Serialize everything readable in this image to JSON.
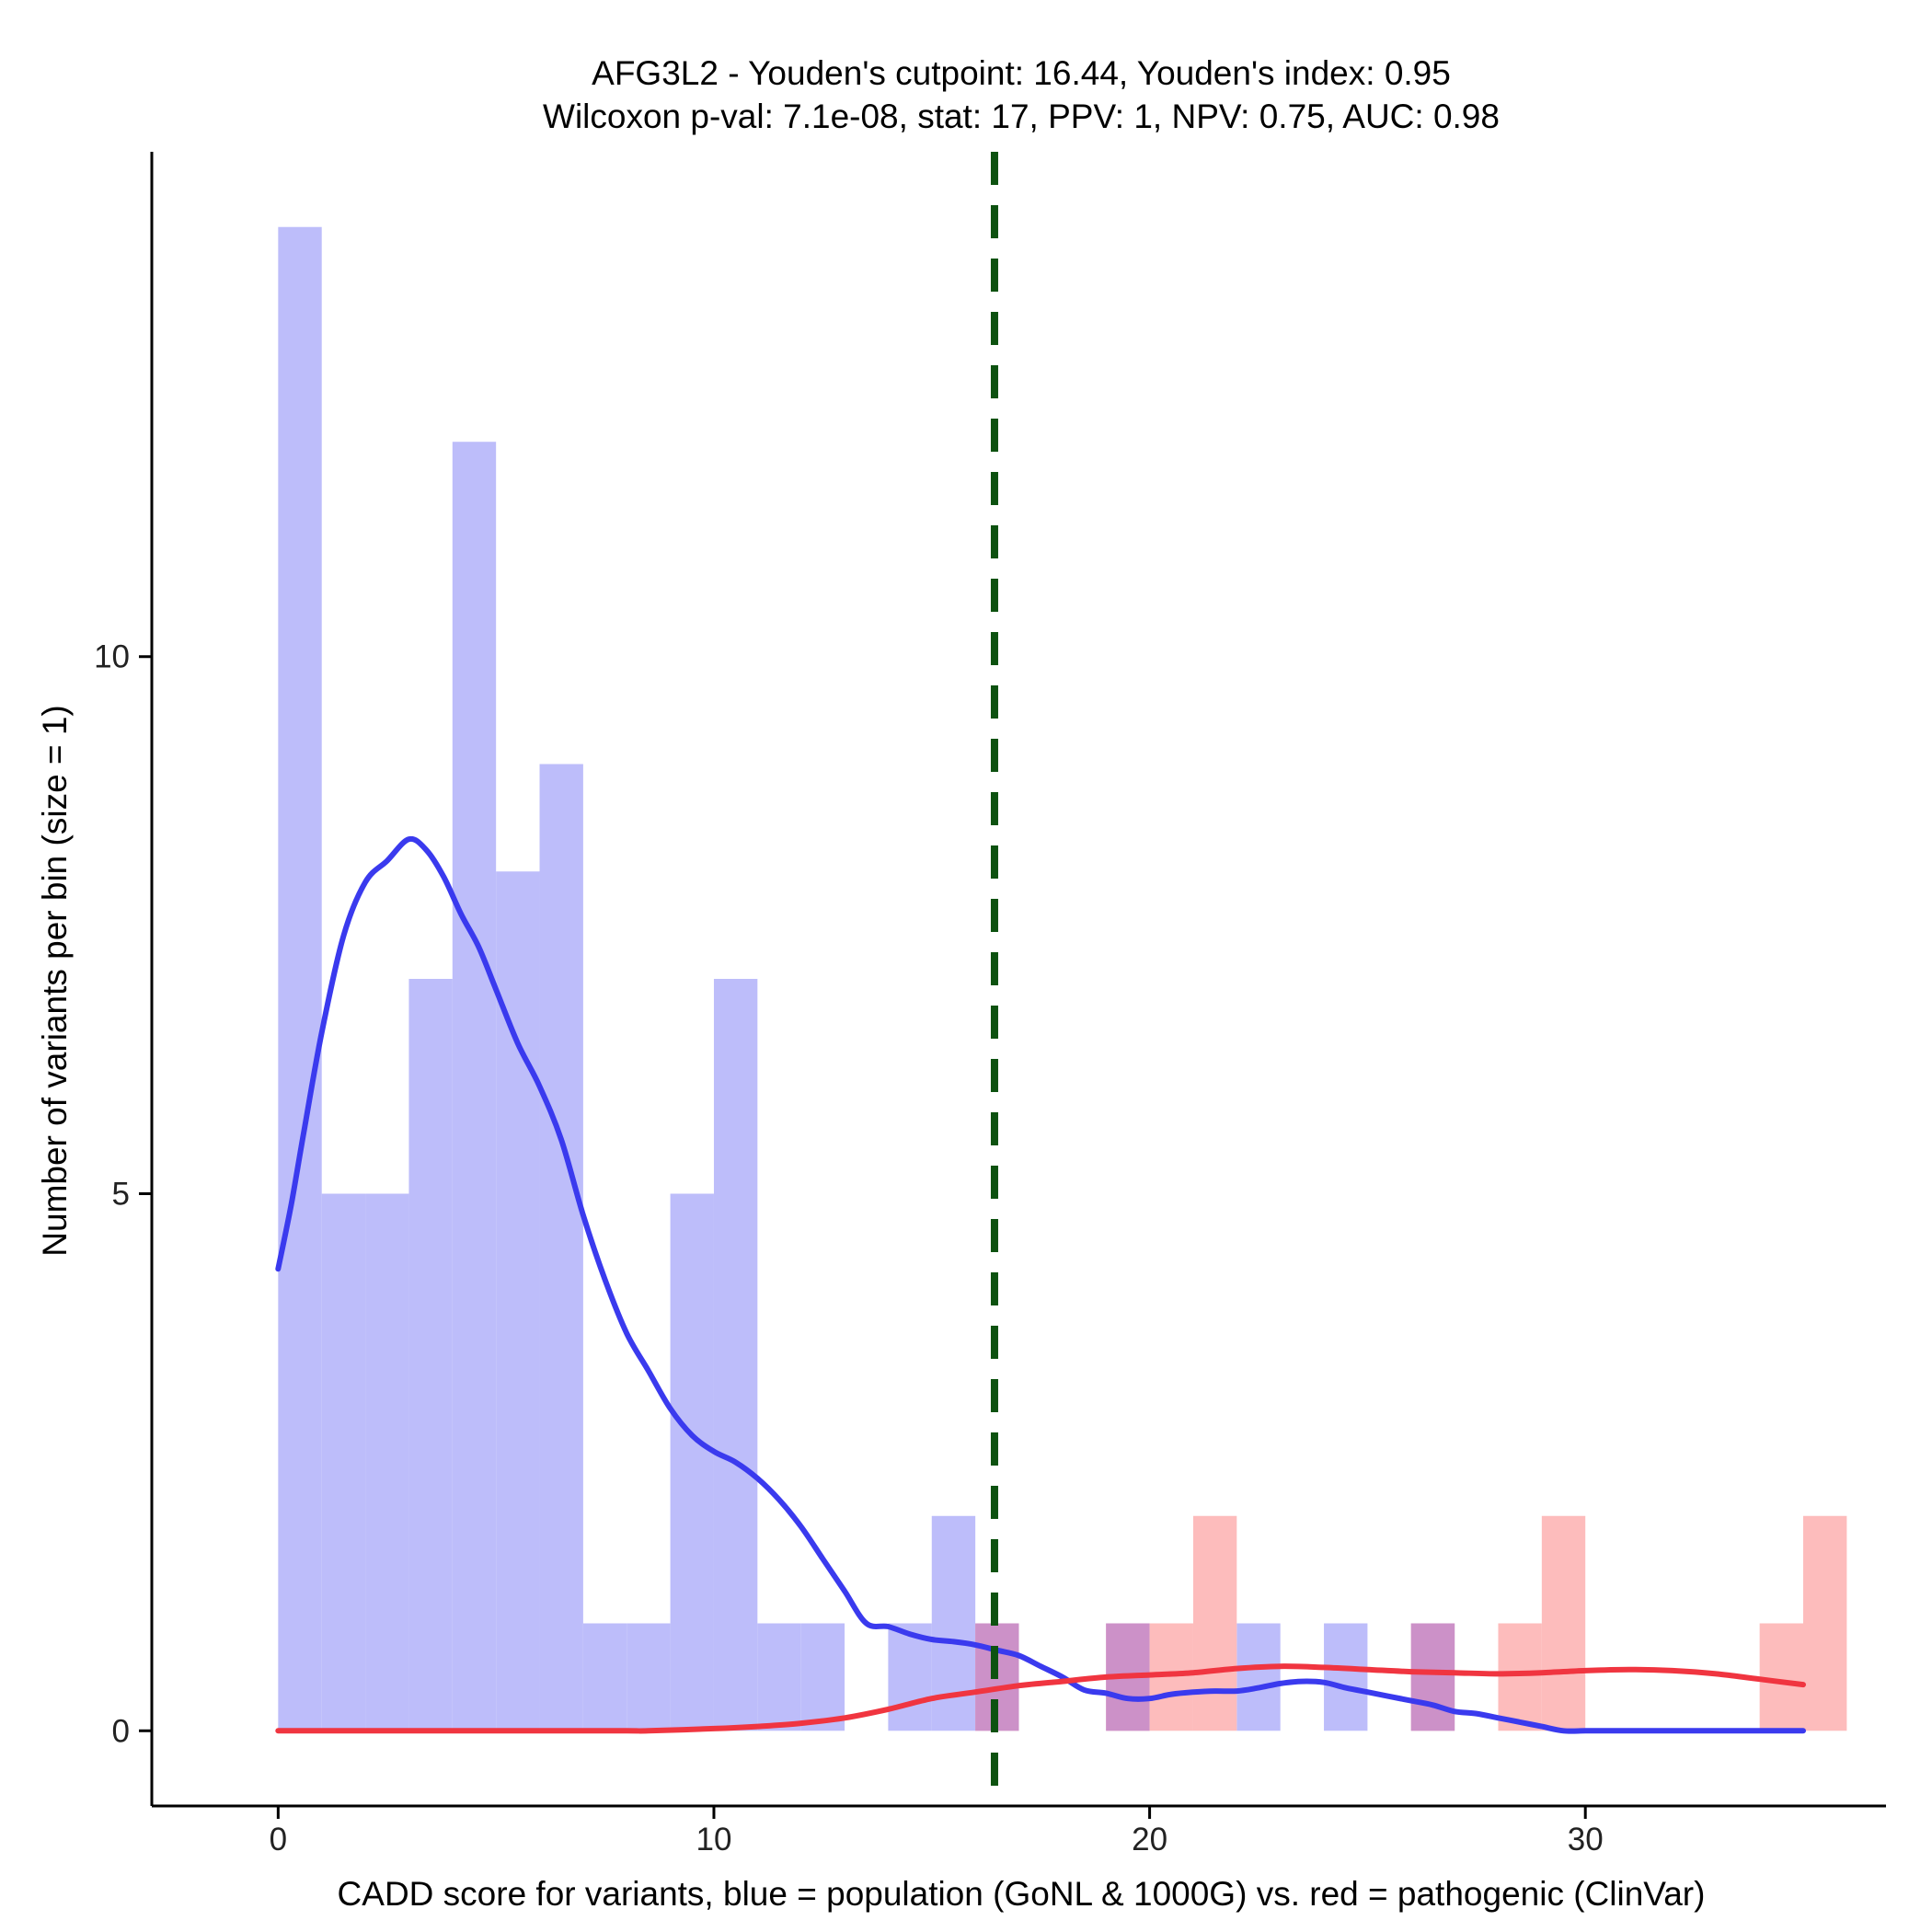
{
  "chart_data": {
    "type": "histogram",
    "title_line1": "AFG3L2 - Youden's cutpoint: 16.44, Youden's index: 0.95",
    "title_line2": "Wilcoxon p-val: 7.1e-08, stat: 17, PPV: 1, NPV: 0.75, AUC: 0.98",
    "xlabel": "CADD score for variants, blue = population (GoNL & 1000G) vs. red = pathogenic (ClinVar)",
    "ylabel": "Number of variants per bin (size = 1)",
    "xlim": [
      -2.9,
      36.9
    ],
    "ylim": [
      -0.7,
      14.7
    ],
    "x_ticks": [
      0,
      10,
      20,
      30
    ],
    "y_ticks": [
      0,
      5,
      10
    ],
    "bin_size": 1,
    "cutpoint": 16.44,
    "colors": {
      "population": "#bdbdfa",
      "pathogenic": "#fdbcbc",
      "overlap": "#cc91c8",
      "population_line": "#3a3aee",
      "pathogenic_line": "#f03540",
      "cutpoint_line": "#0d5210"
    },
    "series": [
      {
        "name": "population (GoNL & 1000G)",
        "bins": [
          {
            "start": 0,
            "count": 14
          },
          {
            "start": 1,
            "count": 5
          },
          {
            "start": 2,
            "count": 5
          },
          {
            "start": 3,
            "count": 7
          },
          {
            "start": 4,
            "count": 12
          },
          {
            "start": 5,
            "count": 8
          },
          {
            "start": 6,
            "count": 9
          },
          {
            "start": 7,
            "count": 1
          },
          {
            "start": 8,
            "count": 1
          },
          {
            "start": 9,
            "count": 5
          },
          {
            "start": 10,
            "count": 7
          },
          {
            "start": 11,
            "count": 1
          },
          {
            "start": 12,
            "count": 1
          },
          {
            "start": 14,
            "count": 1
          },
          {
            "start": 15,
            "count": 2
          },
          {
            "start": 16,
            "count": 1
          },
          {
            "start": 19,
            "count": 1
          },
          {
            "start": 22,
            "count": 1
          },
          {
            "start": 24,
            "count": 1
          },
          {
            "start": 26,
            "count": 1
          }
        ]
      },
      {
        "name": "pathogenic (ClinVar)",
        "bins": [
          {
            "start": 16,
            "count": 1
          },
          {
            "start": 19,
            "count": 1
          },
          {
            "start": 20,
            "count": 1
          },
          {
            "start": 21,
            "count": 2
          },
          {
            "start": 26,
            "count": 1
          },
          {
            "start": 28,
            "count": 1
          },
          {
            "start": 29,
            "count": 2
          },
          {
            "start": 34,
            "count": 1
          },
          {
            "start": 35,
            "count": 2
          }
        ]
      }
    ],
    "density_curves": [
      {
        "name": "population density",
        "x": [
          0,
          0.3,
          0.6,
          1,
          1.5,
          2,
          2.5,
          3,
          3.4,
          3.8,
          4.2,
          4.6,
          5,
          5.5,
          6,
          6.5,
          7,
          7.5,
          8,
          8.5,
          9,
          9.5,
          10,
          10.5,
          11,
          11.5,
          12,
          12.5,
          13,
          13.5,
          14,
          14.5,
          15,
          15.5,
          16,
          16.5,
          17,
          17.5,
          18,
          18.5,
          19,
          19.5,
          20,
          20.5,
          21,
          21.5,
          22,
          22.5,
          23,
          23.5,
          24,
          24.5,
          25,
          25.5,
          26,
          26.5,
          27,
          27.5,
          28,
          28.5,
          29,
          29.5,
          30,
          30.5,
          31,
          32,
          33,
          34,
          35
        ],
        "y": [
          4.3,
          4.9,
          5.6,
          6.5,
          7.4,
          7.9,
          8.1,
          8.3,
          8.2,
          7.95,
          7.6,
          7.3,
          6.9,
          6.4,
          6.0,
          5.5,
          4.8,
          4.2,
          3.7,
          3.35,
          3.0,
          2.75,
          2.6,
          2.5,
          2.35,
          2.15,
          1.9,
          1.6,
          1.3,
          1.0,
          0.97,
          0.9,
          0.85,
          0.83,
          0.8,
          0.75,
          0.7,
          0.6,
          0.5,
          0.38,
          0.35,
          0.3,
          0.3,
          0.34,
          0.36,
          0.37,
          0.37,
          0.4,
          0.44,
          0.46,
          0.45,
          0.4,
          0.36,
          0.32,
          0.28,
          0.24,
          0.18,
          0.16,
          0.12,
          0.08,
          0.04,
          0,
          0,
          0,
          0,
          0,
          0,
          0,
          0
        ]
      },
      {
        "name": "pathogenic density",
        "x": [
          0,
          2,
          4,
          6,
          8,
          8.5,
          10,
          11,
          12,
          13,
          14,
          15,
          16,
          17,
          18,
          19,
          20,
          21,
          22,
          23,
          24,
          25,
          26,
          27,
          28,
          29,
          30,
          31,
          32,
          33,
          34,
          35
        ],
        "y": [
          0,
          0,
          0,
          0,
          0,
          0,
          0.02,
          0.04,
          0.07,
          0.12,
          0.2,
          0.3,
          0.36,
          0.42,
          0.46,
          0.5,
          0.52,
          0.54,
          0.58,
          0.6,
          0.59,
          0.57,
          0.55,
          0.54,
          0.53,
          0.54,
          0.56,
          0.57,
          0.56,
          0.53,
          0.48,
          0.43
        ]
      }
    ]
  }
}
